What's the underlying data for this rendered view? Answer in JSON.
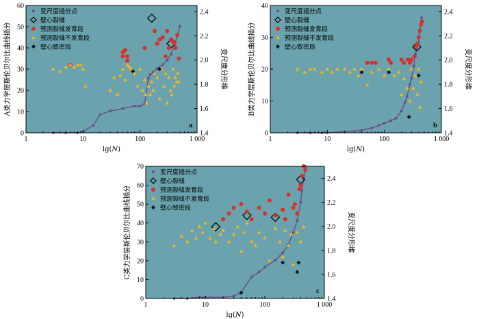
{
  "colors": {
    "plot_bg": "#6aa3ae",
    "fractal_series": "#6b4a8c",
    "wall_fracture": "#ffffff",
    "developed": "#d7312a",
    "undeveloped": "#f2b522",
    "dense": "#111111"
  },
  "chart_data": [
    {
      "type": "scatter",
      "panel_label": "a",
      "ylabel": "A类力学层斯伦贝尔比曲线插分",
      "y2label": "变尺度分形维",
      "xlabel": "lg(N)",
      "xscale": "log",
      "xlim": [
        1,
        1000
      ],
      "ylim": [
        0,
        60
      ],
      "y2lim": [
        1.4,
        2.45
      ],
      "xticks": [
        "1",
        "10",
        "100",
        "1 000"
      ],
      "yticks": [
        "0",
        "10",
        "20",
        "30",
        "40",
        "50",
        "60"
      ],
      "y2ticks": [
        "1.4",
        "1.6",
        "1.8",
        "2.0",
        "2.2",
        "2.4"
      ],
      "grid": false,
      "legend_position": "top-left",
      "legend": [
        "变尺度插分点",
        "壁心裂缝",
        "预测裂缝发育段",
        "预测裂缝不发育段",
        "壁心致密段"
      ],
      "series": [
        {
          "name": "变尺度插分点",
          "axis": "right",
          "x": [
            3,
            5,
            8,
            10,
            15,
            20,
            30,
            50,
            80,
            100,
            120,
            140,
            150,
            170,
            200,
            250,
            300,
            350,
            400,
            450,
            500
          ],
          "y": [
            1.4,
            1.4,
            1.4,
            1.41,
            1.46,
            1.55,
            1.58,
            1.6,
            1.62,
            1.62,
            1.64,
            1.85,
            1.88,
            1.9,
            1.93,
            1.96,
            2.0,
            2.05,
            2.12,
            2.2,
            2.28
          ]
        },
        {
          "name": "壁心裂缝",
          "axis": "left",
          "x": [
            160,
            350
          ],
          "y": [
            54,
            42
          ]
        },
        {
          "name": "预测裂缝发育段",
          "axis": "left",
          "x": [
            6,
            50,
            50,
            55,
            60,
            60,
            120,
            180,
            200,
            220,
            250,
            280,
            300,
            320,
            350,
            380,
            400,
            420,
            450,
            480
          ],
          "y": [
            32,
            38,
            36,
            39,
            36,
            34,
            40,
            48,
            42,
            44,
            45,
            36,
            48,
            40,
            44,
            43,
            42,
            40,
            46,
            35
          ]
        },
        {
          "name": "预测裂缝不发育段",
          "axis": "left",
          "x": [
            3,
            4,
            5,
            6,
            7,
            8,
            9,
            10,
            11,
            30,
            35,
            40,
            45,
            50,
            55,
            60,
            65,
            70,
            80,
            90,
            100,
            110,
            120,
            125,
            130,
            140,
            150,
            160,
            170,
            180,
            200,
            220,
            240,
            260,
            280,
            300,
            320,
            340,
            360,
            380,
            400,
            420,
            440,
            460,
            480
          ],
          "y": [
            30,
            29,
            31,
            32,
            31,
            32,
            32,
            30,
            22,
            20,
            26,
            18,
            27,
            30,
            25,
            32,
            31,
            30,
            28,
            22,
            30,
            20,
            25,
            18,
            14,
            22,
            18,
            24,
            20,
            28,
            26,
            16,
            30,
            22,
            28,
            14,
            26,
            20,
            18,
            30,
            22,
            26,
            24,
            28,
            24
          ]
        },
        {
          "name": "壁心致密段",
          "axis": "left",
          "x": [
            75,
            220
          ],
          "y": [
            29,
            30
          ]
        }
      ]
    },
    {
      "type": "scatter",
      "panel_label": "b",
      "ylabel": "B类力学层斯伦贝尔比曲线插分",
      "y2label": "变尺度分形维",
      "xlabel": "lg(N)",
      "xscale": "log",
      "xlim": [
        1,
        1000
      ],
      "ylim": [
        0,
        40
      ],
      "y2lim": [
        1.4,
        2.45
      ],
      "xticks": [
        "1",
        "10",
        "100",
        "1 000"
      ],
      "yticks": [
        "0",
        "10",
        "20",
        "30",
        "40"
      ],
      "y2ticks": [
        "1.4",
        "1.6",
        "1.8",
        "2.0",
        "2.2",
        "2.4"
      ],
      "grid": false,
      "legend_position": "top-left",
      "legend": [
        "变尺度插分点",
        "壁心裂缝",
        "预测裂缝发育段",
        "预测裂缝不发育段",
        "壁心致密段"
      ],
      "series": [
        {
          "name": "变尺度插分点",
          "axis": "right",
          "x": [
            3,
            5,
            8,
            10,
            20,
            40,
            60,
            80,
            100,
            130,
            160,
            200,
            230,
            250,
            280,
            300,
            330,
            350,
            400,
            420,
            450
          ],
          "y": [
            1.4,
            1.4,
            1.4,
            1.4,
            1.41,
            1.42,
            1.44,
            1.46,
            1.48,
            1.5,
            1.52,
            1.58,
            1.65,
            1.7,
            1.8,
            1.85,
            1.95,
            2.05,
            2.15,
            2.25,
            2.35
          ]
        },
        {
          "name": "壁心裂缝",
          "axis": "left",
          "x": [
            370
          ],
          "y": [
            27
          ]
        },
        {
          "name": "预测裂缝发育段",
          "axis": "left",
          "x": [
            50,
            60,
            70,
            120,
            130,
            200,
            220,
            260,
            280,
            300,
            340,
            360,
            380,
            400,
            420,
            440,
            460
          ],
          "y": [
            22,
            22,
            22,
            23,
            22,
            23,
            22,
            23,
            22,
            23,
            24,
            27,
            28,
            30,
            32,
            34,
            35
          ]
        },
        {
          "name": "预测裂缝不发育段",
          "axis": "left",
          "x": [
            3,
            4,
            5,
            6,
            8,
            10,
            12,
            15,
            20,
            25,
            30,
            35,
            40,
            50,
            60,
            80,
            100,
            120,
            150,
            180,
            200,
            220,
            250,
            280,
            300,
            320,
            350,
            380,
            400,
            420,
            440
          ],
          "y": [
            20,
            19,
            20,
            20,
            19,
            20,
            19,
            20,
            20,
            19,
            20,
            18,
            20,
            15,
            19,
            20,
            18,
            20,
            18,
            19,
            12,
            17,
            14,
            10,
            20,
            14,
            18,
            12,
            20,
            8,
            16
          ]
        },
        {
          "name": "壁心致密段",
          "axis": "left",
          "x": [
            40,
            120,
            270,
            400
          ],
          "y": [
            19,
            19,
            5,
            18
          ]
        }
      ]
    },
    {
      "type": "scatter",
      "panel_label": "c",
      "ylabel": "C类力学层斯伦贝尔比曲线插分",
      "y2label": "变尺度分形维",
      "xlabel": "lg(N)",
      "xscale": "log",
      "xlim": [
        1,
        1000
      ],
      "ylim": [
        0,
        70
      ],
      "y2lim": [
        1.4,
        2.5
      ],
      "xticks": [
        "1",
        "10",
        "100",
        "1 000"
      ],
      "yticks": [
        "0",
        "10",
        "20",
        "30",
        "40",
        "50",
        "60",
        "70"
      ],
      "y2ticks": [
        "1.4",
        "1.6",
        "1.8",
        "2.0",
        "2.2",
        "2.4"
      ],
      "grid": false,
      "legend_position": "top-left",
      "legend": [
        "变尺度插分点",
        "壁心裂缝",
        "预测裂缝发育段",
        "预测裂缝不发育段",
        "壁心致密段"
      ],
      "series": [
        {
          "name": "变尺度插分点",
          "axis": "right",
          "x": [
            3,
            5,
            8,
            10,
            20,
            30,
            40,
            60,
            80,
            100,
            150,
            200,
            250,
            300,
            350,
            400,
            420,
            450,
            480
          ],
          "y": [
            1.4,
            1.4,
            1.41,
            1.41,
            1.41,
            1.42,
            1.45,
            1.58,
            1.62,
            1.66,
            1.72,
            1.78,
            1.85,
            1.95,
            2.05,
            2.2,
            2.3,
            2.4,
            2.5
          ]
        },
        {
          "name": "壁心裂缝",
          "axis": "left",
          "x": [
            15,
            50,
            150,
            400
          ],
          "y": [
            38,
            44,
            43,
            63
          ]
        },
        {
          "name": "预测裂缝发育段",
          "axis": "left",
          "x": [
            20,
            25,
            30,
            40,
            50,
            60,
            80,
            100,
            120,
            150,
            200,
            220,
            250,
            300,
            320,
            350,
            380,
            400,
            420,
            450,
            480
          ],
          "y": [
            42,
            45,
            48,
            50,
            46,
            42,
            48,
            45,
            52,
            44,
            47,
            42,
            55,
            48,
            50,
            45,
            58,
            60,
            65,
            70,
            68
          ]
        },
        {
          "name": "预测裂缝不发育段",
          "axis": "left",
          "x": [
            3,
            4,
            5,
            6,
            7,
            8,
            9,
            10,
            12,
            14,
            15,
            18,
            20,
            25,
            30,
            35,
            40,
            45,
            50,
            60,
            70,
            80,
            100,
            120,
            150,
            180,
            200,
            220,
            250,
            280,
            300,
            350,
            400,
            450
          ],
          "y": [
            28,
            33,
            30,
            36,
            32,
            38,
            35,
            40,
            32,
            37,
            30,
            34,
            36,
            30,
            34,
            38,
            25,
            35,
            40,
            30,
            28,
            35,
            32,
            20,
            37,
            30,
            22,
            36,
            28,
            34,
            18,
            35,
            30,
            38
          ]
        },
        {
          "name": "壁心致密段",
          "axis": "left",
          "x": [
            40,
            200,
            350,
            370
          ],
          "y": [
            3,
            19,
            14,
            19
          ]
        }
      ]
    }
  ]
}
